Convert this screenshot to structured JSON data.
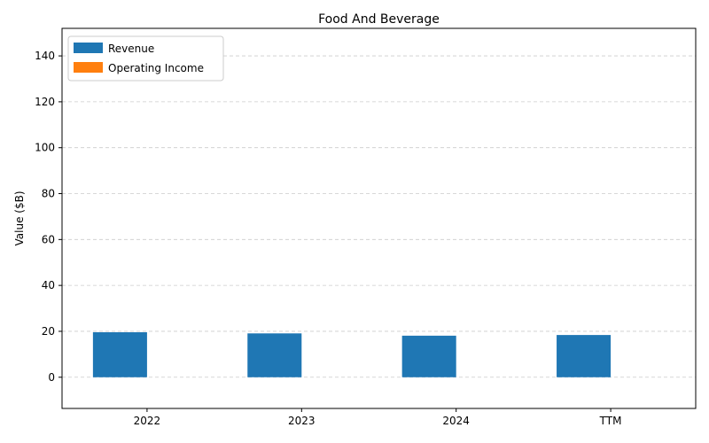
{
  "chart_data": {
    "type": "bar",
    "title": "Food And Beverage",
    "xlabel": "",
    "ylabel": "Value ($B)",
    "categories": [
      "2022",
      "2023",
      "2024",
      "TTM"
    ],
    "series": [
      {
        "name": "Revenue",
        "color": "#1f77b4",
        "values": [
          19.6,
          19.1,
          18.1,
          18.4
        ]
      },
      {
        "name": "Operating Income",
        "color": "#ff7f0e",
        "values": [
          0,
          0,
          0,
          0
        ]
      }
    ],
    "ylim": [
      -13.6,
      152
    ],
    "yticks": [
      0,
      20,
      40,
      60,
      80,
      100,
      120,
      140
    ],
    "grid": "y-dashed",
    "legend_position": "top-left"
  }
}
